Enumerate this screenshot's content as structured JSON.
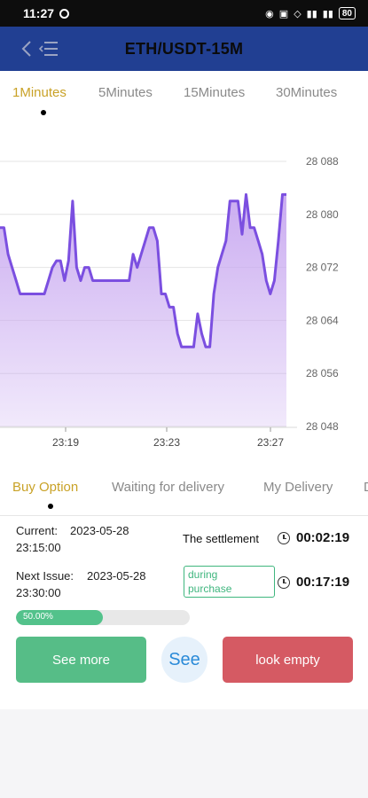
{
  "status_bar": {
    "time": "11:27",
    "battery": "80"
  },
  "header": {
    "title": "ETH/USDT-15M"
  },
  "time_tabs": [
    "1Minutes",
    "5Minutes",
    "15Minutes",
    "30Minutes"
  ],
  "chart_data": {
    "type": "area",
    "x_tick_labels": [
      "23:19",
      "23:23",
      "23:27"
    ],
    "y_tick_labels": [
      "28 088",
      "28 080",
      "28 072",
      "28 064",
      "28 056",
      "28 048"
    ],
    "ylim": [
      28048,
      28088
    ],
    "series": [
      {
        "values": [
          28078,
          28078,
          28074,
          28072,
          28070,
          28068,
          28068,
          28068,
          28068,
          28068,
          28068,
          28068,
          28070,
          28072,
          28073,
          28073,
          28070,
          28073,
          28082,
          28072,
          28070,
          28072,
          28072,
          28070,
          28070,
          28070,
          28070,
          28070,
          28070,
          28070,
          28070,
          28070,
          28070,
          28074,
          28072,
          28074,
          28076,
          28078,
          28078,
          28076,
          28068,
          28068,
          28066,
          28066,
          28062,
          28060,
          28060,
          28060,
          28060,
          28065,
          28062,
          28060,
          28060,
          28068,
          28072,
          28074,
          28076,
          28082,
          28082,
          28082,
          28077,
          28083,
          28078,
          28078,
          28076,
          28074,
          28070,
          28068,
          28070,
          28076,
          28083,
          28083
        ],
        "color": "#7b4fe0"
      }
    ],
    "fill_color": "#c8a8f0"
  },
  "order_tabs": [
    "Buy Option",
    "Waiting for delivery",
    "My Delivery",
    "D"
  ],
  "current": {
    "label": "Current:",
    "date": "2023-05-28",
    "time": "23:15:00",
    "status": "The settlement",
    "countdown": "00:02:19"
  },
  "next_issue": {
    "label": "Next Issue:",
    "date": "2023-05-28",
    "time": "23:30:00",
    "badge_line1": "during",
    "badge_line2": "purchase",
    "countdown": "00:17:19",
    "progress": 0.5,
    "progress_label": "50.00%"
  },
  "buttons": {
    "more": "See more",
    "see": "See",
    "empty": "look empty"
  },
  "colors": {
    "header": "#213f92",
    "active_tab": "#c9a227",
    "green": "#56bd87",
    "red": "#d55a63"
  }
}
